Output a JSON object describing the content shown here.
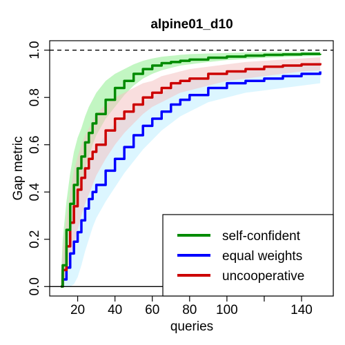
{
  "chart_data": {
    "type": "line",
    "title": "alpine01_d10",
    "xlabel": "queries",
    "ylabel": "Gap metric",
    "xlim": [
      5,
      157
    ],
    "ylim": [
      -0.04,
      1.04
    ],
    "x_ticks": [
      20,
      40,
      60,
      80,
      100,
      140
    ],
    "x_minor_ticks": [
      120
    ],
    "y_ticks": [
      0.0,
      0.2,
      0.4,
      0.6,
      0.8,
      1.0
    ],
    "y_tick_labels": [
      "0.0",
      "0.2",
      "0.4",
      "0.6",
      "0.8",
      "1.0"
    ],
    "reference_lines": [
      {
        "y": 1.0,
        "style": "dashed",
        "color": "#000000"
      },
      {
        "y": 0.0,
        "style": "solid",
        "color": "#000000"
      }
    ],
    "grid": false,
    "legend_position": "bottom-right",
    "x": [
      11,
      12,
      14,
      16,
      18,
      20,
      22,
      24,
      26,
      28,
      30,
      35,
      40,
      45,
      50,
      55,
      60,
      65,
      70,
      75,
      80,
      90,
      100,
      110,
      120,
      130,
      140,
      150
    ],
    "series": [
      {
        "name": "self-confident",
        "color": "#008B00",
        "band_color": "#90EE90",
        "values": [
          0.0,
          0.09,
          0.24,
          0.35,
          0.43,
          0.5,
          0.55,
          0.61,
          0.65,
          0.69,
          0.73,
          0.79,
          0.84,
          0.87,
          0.9,
          0.92,
          0.935,
          0.945,
          0.95,
          0.955,
          0.96,
          0.968,
          0.973,
          0.977,
          0.98,
          0.982,
          0.984,
          0.985
        ],
        "lower": [
          0.0,
          0.02,
          0.12,
          0.22,
          0.3,
          0.37,
          0.43,
          0.49,
          0.55,
          0.6,
          0.64,
          0.71,
          0.76,
          0.81,
          0.85,
          0.88,
          0.9,
          0.915,
          0.925,
          0.935,
          0.94,
          0.95,
          0.958,
          0.963,
          0.968,
          0.971,
          0.974,
          0.976
        ],
        "upper": [
          0.03,
          0.2,
          0.36,
          0.48,
          0.57,
          0.63,
          0.67,
          0.72,
          0.76,
          0.79,
          0.82,
          0.87,
          0.9,
          0.92,
          0.94,
          0.955,
          0.965,
          0.972,
          0.976,
          0.98,
          0.983,
          0.986,
          0.988,
          0.99,
          0.991,
          0.992,
          0.993,
          0.993
        ]
      },
      {
        "name": "equal weights",
        "color": "#0000FF",
        "band_color": "#BFEFFF",
        "values": [
          0.0,
          0.03,
          0.08,
          0.14,
          0.19,
          0.23,
          0.28,
          0.33,
          0.37,
          0.4,
          0.43,
          0.49,
          0.54,
          0.59,
          0.64,
          0.68,
          0.71,
          0.74,
          0.77,
          0.79,
          0.81,
          0.84,
          0.86,
          0.87,
          0.88,
          0.89,
          0.9,
          0.91
        ],
        "lower": [
          0.0,
          0.0,
          0.0,
          0.0,
          0.01,
          0.04,
          0.09,
          0.15,
          0.2,
          0.25,
          0.29,
          0.36,
          0.42,
          0.48,
          0.53,
          0.58,
          0.62,
          0.66,
          0.69,
          0.72,
          0.74,
          0.78,
          0.8,
          0.82,
          0.83,
          0.84,
          0.85,
          0.86
        ],
        "upper": [
          0.05,
          0.12,
          0.2,
          0.27,
          0.33,
          0.39,
          0.44,
          0.49,
          0.53,
          0.56,
          0.59,
          0.64,
          0.69,
          0.72,
          0.75,
          0.78,
          0.8,
          0.82,
          0.84,
          0.86,
          0.87,
          0.89,
          0.9,
          0.91,
          0.92,
          0.93,
          0.94,
          0.95
        ]
      },
      {
        "name": "uncooperative",
        "color": "#CC0000",
        "band_color": "#F4C2C2",
        "values": [
          0.0,
          0.07,
          0.17,
          0.27,
          0.34,
          0.41,
          0.46,
          0.5,
          0.54,
          0.57,
          0.6,
          0.66,
          0.71,
          0.74,
          0.77,
          0.8,
          0.82,
          0.84,
          0.86,
          0.87,
          0.88,
          0.9,
          0.91,
          0.92,
          0.93,
          0.935,
          0.94,
          0.945
        ],
        "lower": [
          0.0,
          0.01,
          0.05,
          0.12,
          0.18,
          0.24,
          0.3,
          0.35,
          0.39,
          0.43,
          0.47,
          0.54,
          0.6,
          0.65,
          0.69,
          0.73,
          0.76,
          0.78,
          0.8,
          0.82,
          0.83,
          0.85,
          0.87,
          0.88,
          0.89,
          0.9,
          0.91,
          0.915
        ],
        "upper": [
          0.02,
          0.15,
          0.29,
          0.4,
          0.49,
          0.55,
          0.6,
          0.64,
          0.67,
          0.7,
          0.73,
          0.77,
          0.8,
          0.82,
          0.84,
          0.86,
          0.87,
          0.89,
          0.9,
          0.91,
          0.92,
          0.93,
          0.94,
          0.95,
          0.955,
          0.96,
          0.965,
          0.97
        ]
      }
    ]
  }
}
